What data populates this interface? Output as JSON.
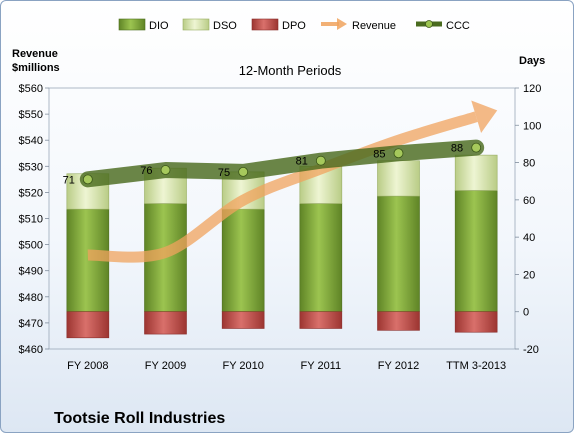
{
  "chart_data": {
    "type": "bar",
    "title": "12-Month Periods",
    "company": "Tootsie Roll Industries",
    "left_axis": {
      "label_line1": "Revenue",
      "label_line2": "$millions",
      "min": 460,
      "max": 560,
      "step": 10,
      "ticks": [
        "$460",
        "$470",
        "$480",
        "$490",
        "$500",
        "$510",
        "$520",
        "$530",
        "$540",
        "$550",
        "$560"
      ]
    },
    "right_axis": {
      "label": "Days",
      "min": -20,
      "max": 120,
      "step": 20,
      "ticks": [
        "-20",
        "0",
        "20",
        "40",
        "60",
        "80",
        "100",
        "120"
      ]
    },
    "categories": [
      "FY 2008",
      "FY 2009",
      "FY 2010",
      "FY 2011",
      "FY 2012",
      "TTM 3-2013"
    ],
    "series": [
      {
        "name": "DIO",
        "values": [
          55,
          58,
          55,
          58,
          62,
          65
        ],
        "color": "#7fa23a"
      },
      {
        "name": "DSO",
        "values": [
          19,
          19,
          20,
          20,
          19,
          19
        ],
        "color": "#dce8b4"
      },
      {
        "name": "DPO",
        "values": [
          -14,
          -12,
          -9,
          -9,
          -10,
          -11
        ],
        "color": "#c0504d"
      },
      {
        "name": "Revenue",
        "values": [
          496,
          497,
          517,
          529,
          540,
          549
        ],
        "color": "#f0a35e"
      },
      {
        "name": "CCC",
        "values": [
          71,
          76,
          75,
          81,
          85,
          88
        ],
        "color": "#4a6b1f"
      }
    ],
    "ccc_labels": [
      "71",
      "76",
      "75",
      "81",
      "85",
      "88"
    ],
    "legend_position": "top"
  }
}
